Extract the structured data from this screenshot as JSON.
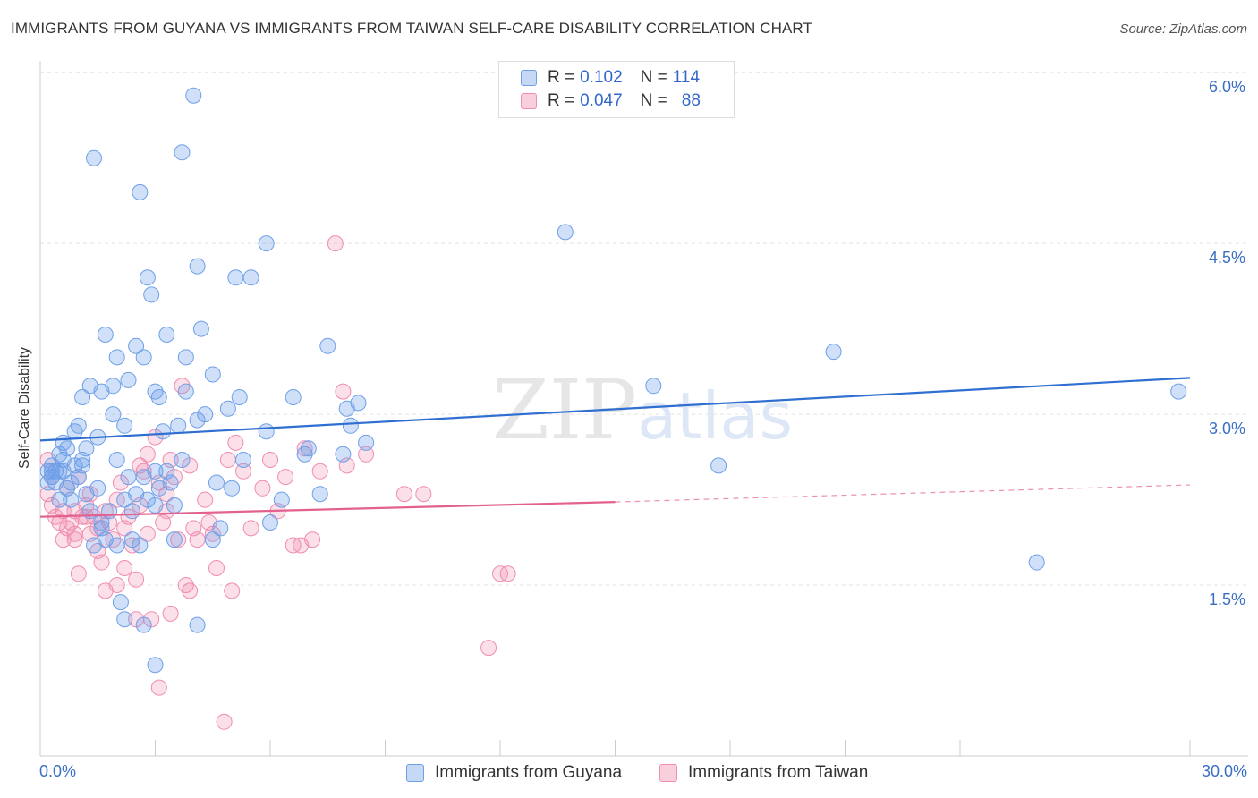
{
  "title": "IMMIGRANTS FROM GUYANA VS IMMIGRANTS FROM TAIWAN SELF-CARE DISABILITY CORRELATION CHART",
  "source": "Source: ZipAtlas.com",
  "watermark": "ZIPatlas",
  "legend": {
    "guyana": {
      "r_label": "R =",
      "r_value": "0.102",
      "n_label": "N =",
      "n_value": "114"
    },
    "taiwan": {
      "r_label": "R =",
      "r_value": "0.047",
      "n_label": "N =",
      "n_value": "88"
    }
  },
  "bottom_legend": {
    "guyana": "Immigrants from Guyana",
    "taiwan": "Immigrants from Taiwan"
  },
  "x_ticks": {
    "min_label": "0.0%",
    "max_label": "30.0%"
  },
  "y_ticks": [
    "6.0%",
    "4.5%",
    "3.0%",
    "1.5%"
  ],
  "colors": {
    "guyana": "#6ea0e8",
    "taiwan": "#f08db0",
    "guyana_line": "#2f6fd1",
    "taiwan_line": "#e2628f",
    "axis_label": "#3a6fc4"
  },
  "chart_data": {
    "type": "scatter",
    "title": "IMMIGRANTS FROM GUYANA VS IMMIGRANTS FROM TAIWAN SELF-CARE DISABILITY CORRELATION CHART",
    "xlabel": "",
    "ylabel": "Self-Care Disability",
    "xlim": [
      0,
      30
    ],
    "ylim": [
      0,
      6.2
    ],
    "y_gridlines": [
      1.5,
      3.0,
      4.5,
      6.0
    ],
    "series": [
      {
        "name": "Immigrants from Guyana",
        "color": "#6ea0e8",
        "R": 0.102,
        "N": 114,
        "trend": {
          "x0": 0,
          "y0": 2.77,
          "x1": 30,
          "y1": 3.32
        },
        "points": [
          [
            0.2,
            2.4
          ],
          [
            0.2,
            2.5
          ],
          [
            0.3,
            2.45
          ],
          [
            0.3,
            2.55
          ],
          [
            0.4,
            2.4
          ],
          [
            0.4,
            2.5
          ],
          [
            0.5,
            2.5
          ],
          [
            0.5,
            2.65
          ],
          [
            0.5,
            2.25
          ],
          [
            0.6,
            2.6
          ],
          [
            0.6,
            2.75
          ],
          [
            0.7,
            2.7
          ],
          [
            0.7,
            2.35
          ],
          [
            0.8,
            2.25
          ],
          [
            0.8,
            2.4
          ],
          [
            0.9,
            2.85
          ],
          [
            0.9,
            2.55
          ],
          [
            1.0,
            2.9
          ],
          [
            1.0,
            2.45
          ],
          [
            1.1,
            3.15
          ],
          [
            1.1,
            2.55
          ],
          [
            1.2,
            2.3
          ],
          [
            1.2,
            2.7
          ],
          [
            1.3,
            3.25
          ],
          [
            1.3,
            2.15
          ],
          [
            1.4,
            1.85
          ],
          [
            1.5,
            2.35
          ],
          [
            1.6,
            2.0
          ],
          [
            1.6,
            3.2
          ],
          [
            1.7,
            3.7
          ],
          [
            1.7,
            1.9
          ],
          [
            1.8,
            2.15
          ],
          [
            1.9,
            3.0
          ],
          [
            1.9,
            3.25
          ],
          [
            2.0,
            3.5
          ],
          [
            2.0,
            2.6
          ],
          [
            2.0,
            1.85
          ],
          [
            2.1,
            1.35
          ],
          [
            2.2,
            2.9
          ],
          [
            2.2,
            2.25
          ],
          [
            2.3,
            2.45
          ],
          [
            2.3,
            3.3
          ],
          [
            2.4,
            2.15
          ],
          [
            2.4,
            1.9
          ],
          [
            2.5,
            3.6
          ],
          [
            2.5,
            2.3
          ],
          [
            2.6,
            4.95
          ],
          [
            2.6,
            1.85
          ],
          [
            2.7,
            3.5
          ],
          [
            2.7,
            2.45
          ],
          [
            2.8,
            4.2
          ],
          [
            2.8,
            2.25
          ],
          [
            2.9,
            4.05
          ],
          [
            3.0,
            3.2
          ],
          [
            3.0,
            2.5
          ],
          [
            3.0,
            2.2
          ],
          [
            3.1,
            2.35
          ],
          [
            3.1,
            3.15
          ],
          [
            3.2,
            2.85
          ],
          [
            3.3,
            3.7
          ],
          [
            3.3,
            2.5
          ],
          [
            3.4,
            2.4
          ],
          [
            3.5,
            2.2
          ],
          [
            3.5,
            1.9
          ],
          [
            3.6,
            2.9
          ],
          [
            3.7,
            5.3
          ],
          [
            3.7,
            2.6
          ],
          [
            3.8,
            3.5
          ],
          [
            3.8,
            3.2
          ],
          [
            4.0,
            5.8
          ],
          [
            4.1,
            4.3
          ],
          [
            4.1,
            2.95
          ],
          [
            4.2,
            3.75
          ],
          [
            4.3,
            3.0
          ],
          [
            4.5,
            3.35
          ],
          [
            4.5,
            1.9
          ],
          [
            4.6,
            2.4
          ],
          [
            4.7,
            2.0
          ],
          [
            4.9,
            3.05
          ],
          [
            5.0,
            2.35
          ],
          [
            5.1,
            4.2
          ],
          [
            5.2,
            3.15
          ],
          [
            5.3,
            2.6
          ],
          [
            5.5,
            4.2
          ],
          [
            5.9,
            4.5
          ],
          [
            5.9,
            2.85
          ],
          [
            6.0,
            2.05
          ],
          [
            6.3,
            2.25
          ],
          [
            6.6,
            3.15
          ],
          [
            6.9,
            2.65
          ],
          [
            7.0,
            2.7
          ],
          [
            7.3,
            2.3
          ],
          [
            7.5,
            3.6
          ],
          [
            7.9,
            2.65
          ],
          [
            8.0,
            3.05
          ],
          [
            8.1,
            2.9
          ],
          [
            8.3,
            3.1
          ],
          [
            8.5,
            2.75
          ],
          [
            13.7,
            4.6
          ],
          [
            16.0,
            3.25
          ],
          [
            17.7,
            2.55
          ],
          [
            20.7,
            3.55
          ],
          [
            26.0,
            1.7
          ],
          [
            29.7,
            3.2
          ],
          [
            1.6,
            2.05
          ],
          [
            2.2,
            1.2
          ],
          [
            2.7,
            1.15
          ],
          [
            3.0,
            0.8
          ],
          [
            4.1,
            1.15
          ],
          [
            1.4,
            5.25
          ],
          [
            0.3,
            2.5
          ],
          [
            0.6,
            2.5
          ],
          [
            1.1,
            2.6
          ],
          [
            1.5,
            2.8
          ]
        ]
      },
      {
        "name": "Immigrants from Taiwan",
        "color": "#f08db0",
        "R": 0.047,
        "N": 88,
        "trend": {
          "x0": 0,
          "y0": 2.1,
          "x1": 15,
          "y1": 2.23
        },
        "trend_dashed": {
          "x0": 15,
          "y0": 2.23,
          "x1": 30,
          "y1": 2.38
        },
        "points": [
          [
            0.2,
            2.6
          ],
          [
            0.2,
            2.3
          ],
          [
            0.3,
            2.2
          ],
          [
            0.3,
            2.45
          ],
          [
            0.4,
            2.1
          ],
          [
            0.5,
            2.05
          ],
          [
            0.6,
            1.9
          ],
          [
            0.6,
            2.15
          ],
          [
            0.7,
            2.35
          ],
          [
            0.8,
            2.05
          ],
          [
            0.9,
            1.95
          ],
          [
            0.9,
            2.15
          ],
          [
            1.0,
            1.6
          ],
          [
            1.0,
            2.45
          ],
          [
            1.1,
            2.1
          ],
          [
            1.2,
            2.2
          ],
          [
            1.3,
            1.95
          ],
          [
            1.3,
            2.3
          ],
          [
            1.4,
            2.1
          ],
          [
            1.5,
            2.0
          ],
          [
            1.5,
            1.8
          ],
          [
            1.6,
            1.7
          ],
          [
            1.7,
            2.15
          ],
          [
            1.7,
            1.45
          ],
          [
            1.8,
            2.05
          ],
          [
            1.9,
            1.9
          ],
          [
            2.0,
            2.25
          ],
          [
            2.0,
            1.5
          ],
          [
            2.1,
            2.4
          ],
          [
            2.2,
            2.0
          ],
          [
            2.2,
            1.65
          ],
          [
            2.3,
            2.1
          ],
          [
            2.4,
            1.85
          ],
          [
            2.5,
            1.55
          ],
          [
            2.5,
            1.2
          ],
          [
            2.6,
            2.2
          ],
          [
            2.7,
            2.5
          ],
          [
            2.8,
            2.65
          ],
          [
            2.8,
            1.95
          ],
          [
            2.9,
            1.2
          ],
          [
            3.0,
            2.8
          ],
          [
            3.1,
            2.4
          ],
          [
            3.1,
            0.6
          ],
          [
            3.2,
            2.05
          ],
          [
            3.3,
            2.15
          ],
          [
            3.4,
            2.6
          ],
          [
            3.4,
            1.25
          ],
          [
            3.5,
            2.45
          ],
          [
            3.6,
            1.9
          ],
          [
            3.7,
            3.25
          ],
          [
            3.8,
            1.5
          ],
          [
            3.9,
            2.55
          ],
          [
            4.0,
            2.0
          ],
          [
            4.1,
            1.9
          ],
          [
            4.3,
            2.25
          ],
          [
            4.5,
            1.95
          ],
          [
            4.6,
            1.65
          ],
          [
            4.8,
            0.3
          ],
          [
            4.9,
            2.6
          ],
          [
            5.1,
            2.75
          ],
          [
            5.3,
            2.5
          ],
          [
            5.5,
            2.0
          ],
          [
            5.8,
            2.35
          ],
          [
            6.0,
            2.6
          ],
          [
            6.2,
            2.15
          ],
          [
            6.4,
            2.45
          ],
          [
            6.6,
            1.85
          ],
          [
            6.9,
            2.7
          ],
          [
            7.1,
            1.9
          ],
          [
            7.3,
            2.5
          ],
          [
            7.9,
            3.2
          ],
          [
            8.0,
            2.55
          ],
          [
            8.5,
            2.65
          ],
          [
            9.5,
            2.3
          ],
          [
            10.0,
            2.3
          ],
          [
            11.7,
            0.95
          ],
          [
            12.0,
            1.6
          ],
          [
            12.2,
            1.6
          ],
          [
            7.7,
            4.5
          ],
          [
            6.8,
            1.85
          ],
          [
            5.0,
            1.45
          ],
          [
            3.9,
            1.45
          ],
          [
            1.2,
            2.1
          ],
          [
            0.9,
            1.9
          ],
          [
            2.6,
            2.55
          ],
          [
            3.3,
            2.3
          ],
          [
            4.4,
            2.05
          ],
          [
            0.7,
            2.0
          ]
        ]
      }
    ]
  }
}
